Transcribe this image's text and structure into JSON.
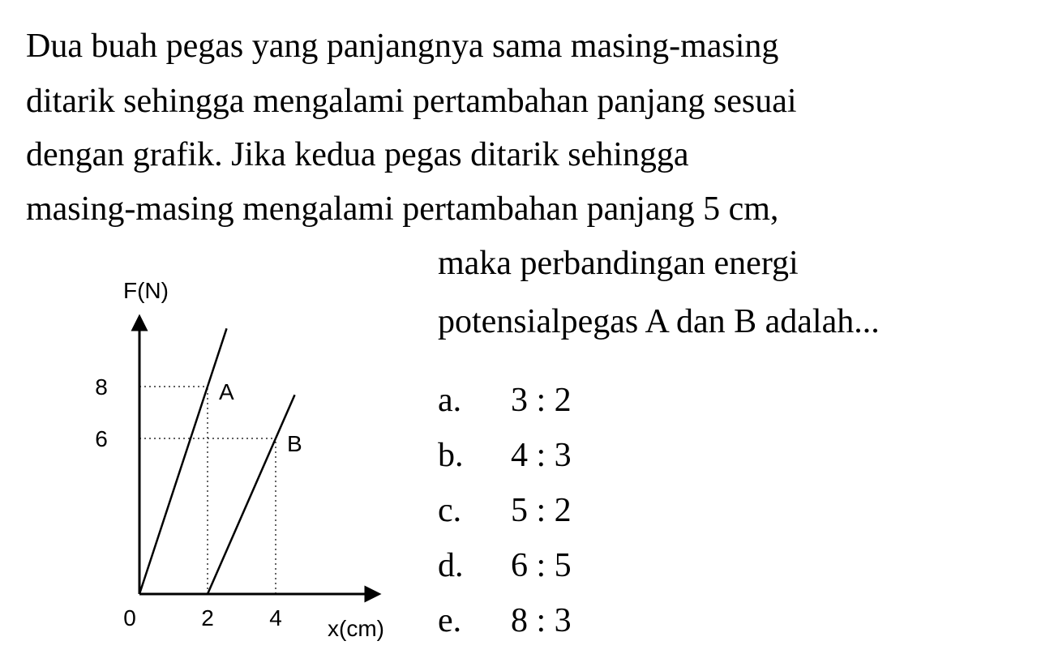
{
  "question": {
    "lines": [
      "Dua buah pegas yang panjangnya sama masing-masing",
      "ditarik sehingga mengalami pertambahan panjang sesuai",
      "dengan grafik. Jika kedua pegas ditarik sehingga",
      "masing-masing mengalami pertambahan panjang 5 cm,",
      "maka perbandingan energi",
      "potensialpegas A dan B adalah..."
    ]
  },
  "graph": {
    "y_label": "F(N)",
    "x_label": "x(cm)",
    "xticks": [
      0,
      2,
      4
    ],
    "yticks": [
      8,
      6
    ],
    "lines": [
      {
        "label": "A",
        "x": [
          0,
          2
        ],
        "y": [
          0,
          8
        ]
      },
      {
        "label": "B",
        "x": [
          2,
          4
        ],
        "y": [
          0,
          6
        ]
      }
    ]
  },
  "options": [
    {
      "letter": "a.",
      "text": "3 : 2"
    },
    {
      "letter": "b.",
      "text": "4 : 3"
    },
    {
      "letter": "c.",
      "text": "5 : 2"
    },
    {
      "letter": "d.",
      "text": "6 : 5"
    },
    {
      "letter": "e.",
      "text": "8 : 3"
    }
  ]
}
